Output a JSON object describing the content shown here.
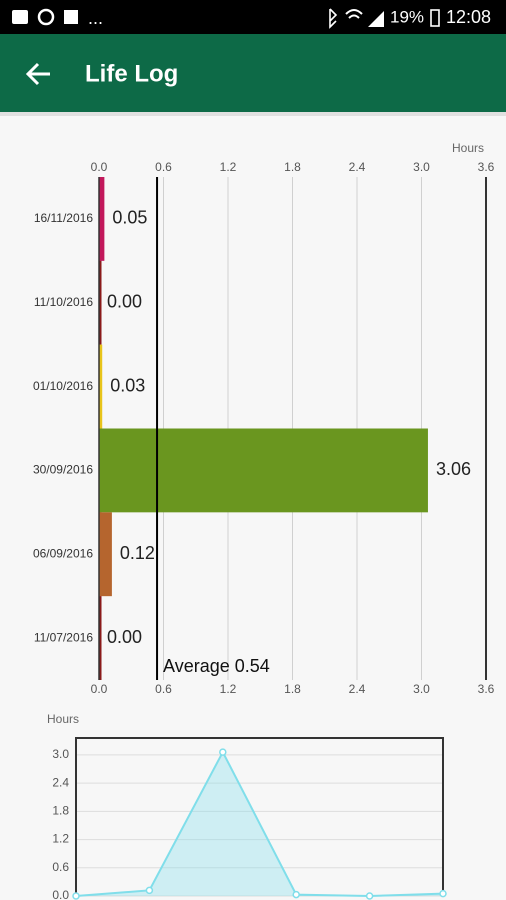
{
  "status_bar": {
    "overflow": "...",
    "battery": "19%",
    "time": "12:08"
  },
  "app_bar": {
    "title": "Life Log"
  },
  "chart_data": [
    {
      "type": "hbar",
      "x_label": "Hours",
      "categories": [
        "16/11/2016",
        "11/10/2016",
        "01/10/2016",
        "30/09/2016",
        "06/09/2016",
        "11/07/2016"
      ],
      "values": [
        0.05,
        0,
        0.03,
        3.06,
        0.12,
        0
      ],
      "value_labels": [
        "0.05",
        "0.00",
        "0.03",
        "3.06",
        "0.12",
        "0.00"
      ],
      "colors": [
        "#c2185b",
        "#8b1a1a",
        "#e8c41a",
        "#6a961f",
        "#b5652e",
        "#8b1a1a"
      ],
      "xlim": [
        0,
        3.6
      ],
      "xticks": [
        {
          "value": 0,
          "label": "0.0"
        },
        0.6,
        1.2,
        1.8,
        2.4,
        {
          "value": 3,
          "label": "3.0"
        },
        3.6
      ],
      "grid": true,
      "average": {
        "value": 0.54,
        "label": "Average 0.54"
      }
    },
    {
      "type": "area",
      "y_label": "Hours",
      "values": [
        0,
        0.12,
        3.06,
        0.03,
        0,
        0.05
      ],
      "color": "#80deea",
      "ylim": [
        0,
        3.36
      ],
      "yticks": [
        {
          "value": 0,
          "label": "0.0"
        },
        0.6,
        1.2,
        1.8,
        2.4,
        {
          "value": 3,
          "label": "3.0"
        }
      ],
      "grid": true
    }
  ]
}
